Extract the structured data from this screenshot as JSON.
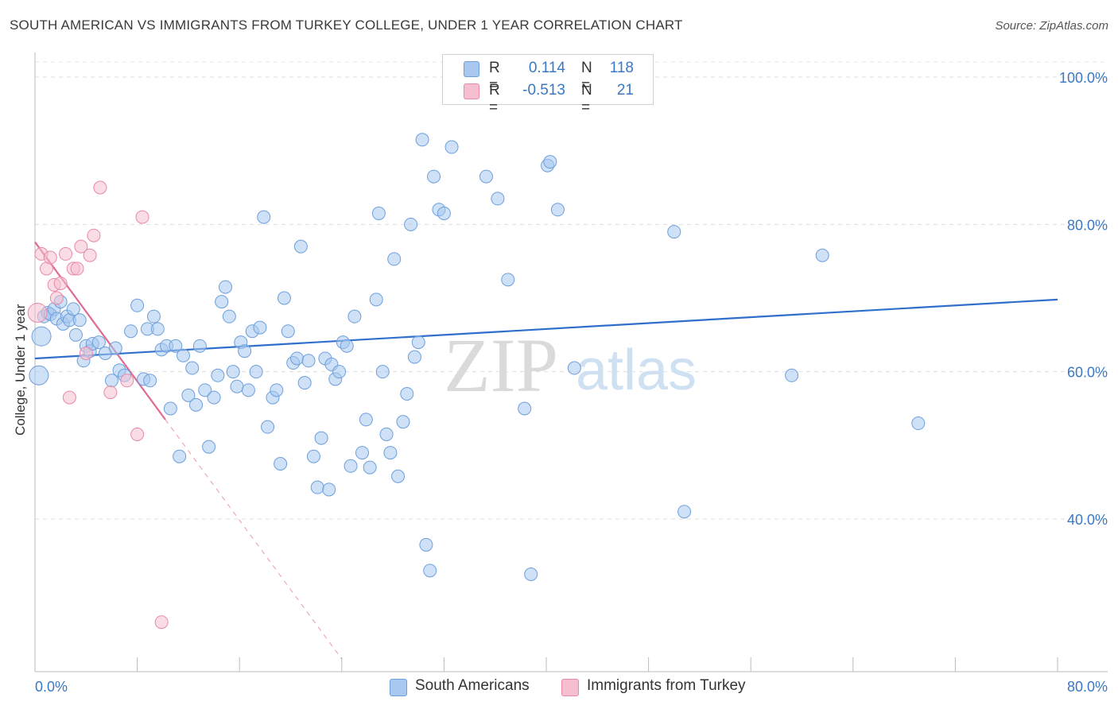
{
  "header": {
    "title": "SOUTH AMERICAN VS IMMIGRANTS FROM TURKEY COLLEGE, UNDER 1 YEAR CORRELATION CHART",
    "source": "Source: ZipAtlas.com"
  },
  "legend": {
    "rows": [
      {
        "r_label": "R =",
        "r_value": "0.114",
        "n_label": "N =",
        "n_value": "118"
      },
      {
        "r_label": "R =",
        "r_value": "-0.513",
        "n_label": "N =",
        "n_value": "21"
      }
    ]
  },
  "bottom_legend": {
    "items": [
      {
        "label": "South Americans"
      },
      {
        "label": "Immigrants from Turkey"
      }
    ]
  },
  "watermark": {
    "zip": "ZIP",
    "atlas": "atlas"
  },
  "colors": {
    "blue_fill": "#a8c8ef",
    "blue_stroke": "#6d9fdc",
    "blue_line": "#2f6fcc",
    "pink_fill": "#f6bfd0",
    "pink_stroke": "#e88aa8",
    "pink_line": "#e06a92",
    "axis_text": "#3b78c4"
  },
  "chart_data": {
    "type": "scatter",
    "title": "SOUTH AMERICAN VS IMMIGRANTS FROM TURKEY COLLEGE, UNDER 1 YEAR CORRELATION CHART",
    "xlabel": "",
    "ylabel": "College, Under 1 year",
    "xlim": [
      0,
      80
    ],
    "ylim": [
      20,
      102
    ],
    "x_tick_labels": [
      "0.0%",
      "80.0%"
    ],
    "y_ticks": [
      40,
      60,
      80,
      100
    ],
    "y_tick_labels": [
      "40.0%",
      "60.0%",
      "80.0%",
      "100.0%"
    ],
    "grid": "horizontal dashed",
    "legend_position": "top-center",
    "series": [
      {
        "name": "South Americans",
        "color": "#a8c8ef",
        "trend": {
          "x": [
            0,
            80
          ],
          "y": [
            61.8,
            69.8
          ]
        },
        "points": [
          [
            0.3,
            59.5
          ],
          [
            0.5,
            64.8
          ],
          [
            0.7,
            67.5
          ],
          [
            1.0,
            68.0
          ],
          [
            1.2,
            67.8
          ],
          [
            1.5,
            68.5
          ],
          [
            1.7,
            67.2
          ],
          [
            2.0,
            69.5
          ],
          [
            2.2,
            66.5
          ],
          [
            2.5,
            67.5
          ],
          [
            2.7,
            67.0
          ],
          [
            3.0,
            68.5
          ],
          [
            3.2,
            65.0
          ],
          [
            3.5,
            67.0
          ],
          [
            3.8,
            61.5
          ],
          [
            4.0,
            63.5
          ],
          [
            4.3,
            62.8
          ],
          [
            4.5,
            63.8
          ],
          [
            5.0,
            64.0
          ],
          [
            5.5,
            62.5
          ],
          [
            6.0,
            58.8
          ],
          [
            6.3,
            63.2
          ],
          [
            6.6,
            60.2
          ],
          [
            7.0,
            59.5
          ],
          [
            7.5,
            65.5
          ],
          [
            8.0,
            69.0
          ],
          [
            8.5,
            59.0
          ],
          [
            8.8,
            65.8
          ],
          [
            9.0,
            58.8
          ],
          [
            9.3,
            67.5
          ],
          [
            9.6,
            65.8
          ],
          [
            9.9,
            63.0
          ],
          [
            10.3,
            63.5
          ],
          [
            10.6,
            55.0
          ],
          [
            11.0,
            63.5
          ],
          [
            11.3,
            48.5
          ],
          [
            11.6,
            62.2
          ],
          [
            12.0,
            56.8
          ],
          [
            12.3,
            60.5
          ],
          [
            12.6,
            55.5
          ],
          [
            12.9,
            63.5
          ],
          [
            13.3,
            57.5
          ],
          [
            13.6,
            49.8
          ],
          [
            14.0,
            56.5
          ],
          [
            14.3,
            59.5
          ],
          [
            14.6,
            69.5
          ],
          [
            14.9,
            71.5
          ],
          [
            15.2,
            67.5
          ],
          [
            15.5,
            60.0
          ],
          [
            15.8,
            58.0
          ],
          [
            16.1,
            64.0
          ],
          [
            16.4,
            62.8
          ],
          [
            16.7,
            57.5
          ],
          [
            17.0,
            65.5
          ],
          [
            17.3,
            60.0
          ],
          [
            17.6,
            66.0
          ],
          [
            17.9,
            81.0
          ],
          [
            18.2,
            52.5
          ],
          [
            18.6,
            56.5
          ],
          [
            18.9,
            57.5
          ],
          [
            19.2,
            47.5
          ],
          [
            19.5,
            70.0
          ],
          [
            19.8,
            65.5
          ],
          [
            20.2,
            61.2
          ],
          [
            20.5,
            61.8
          ],
          [
            20.8,
            77.0
          ],
          [
            21.1,
            58.5
          ],
          [
            21.4,
            61.5
          ],
          [
            21.8,
            48.5
          ],
          [
            22.1,
            44.3
          ],
          [
            22.4,
            51.0
          ],
          [
            22.7,
            61.8
          ],
          [
            23.0,
            44.0
          ],
          [
            23.2,
            61.0
          ],
          [
            23.5,
            59.0
          ],
          [
            23.8,
            60.0
          ],
          [
            24.1,
            64.0
          ],
          [
            24.4,
            63.5
          ],
          [
            24.7,
            47.2
          ],
          [
            25.0,
            67.5
          ],
          [
            25.6,
            49.0
          ],
          [
            25.9,
            53.5
          ],
          [
            26.2,
            47.0
          ],
          [
            26.7,
            69.8
          ],
          [
            26.9,
            81.5
          ],
          [
            27.2,
            60.0
          ],
          [
            27.5,
            51.5
          ],
          [
            27.8,
            49.0
          ],
          [
            28.1,
            75.3
          ],
          [
            28.4,
            45.8
          ],
          [
            28.8,
            53.2
          ],
          [
            29.1,
            57.0
          ],
          [
            29.4,
            80.0
          ],
          [
            29.7,
            62.0
          ],
          [
            30.0,
            64.0
          ],
          [
            30.3,
            91.5
          ],
          [
            30.6,
            36.5
          ],
          [
            30.9,
            33.0
          ],
          [
            31.2,
            86.5
          ],
          [
            31.6,
            82.0
          ],
          [
            32.0,
            81.5
          ],
          [
            32.6,
            90.5
          ],
          [
            35.3,
            86.5
          ],
          [
            36.2,
            83.5
          ],
          [
            37.0,
            72.5
          ],
          [
            38.3,
            55.0
          ],
          [
            38.8,
            32.5
          ],
          [
            40.1,
            88.0
          ],
          [
            40.3,
            88.5
          ],
          [
            40.9,
            82.0
          ],
          [
            42.2,
            60.5
          ],
          [
            50.0,
            79.0
          ],
          [
            50.8,
            41.0
          ],
          [
            59.2,
            59.5
          ],
          [
            61.6,
            75.8
          ],
          [
            69.1,
            53.0
          ]
        ],
        "sizes_note": "large markers at x=0.3 and x=0.5"
      },
      {
        "name": "Immigrants from Turkey",
        "color": "#f6bfd0",
        "trend": {
          "x": [
            0,
            10.2
          ],
          "y": [
            77.6,
            53.5
          ],
          "dashed_extension": {
            "x": [
              10.2,
              24.0
            ],
            "y": [
              53.5,
              21.0
            ]
          }
        },
        "points": [
          [
            0.2,
            68.0
          ],
          [
            0.5,
            76.0
          ],
          [
            0.9,
            74.0
          ],
          [
            1.2,
            75.5
          ],
          [
            1.5,
            71.8
          ],
          [
            1.7,
            70.0
          ],
          [
            2.0,
            72.0
          ],
          [
            2.4,
            76.0
          ],
          [
            2.7,
            56.5
          ],
          [
            3.0,
            74.0
          ],
          [
            3.3,
            74.0
          ],
          [
            3.6,
            77.0
          ],
          [
            4.0,
            62.5
          ],
          [
            4.3,
            75.8
          ],
          [
            4.6,
            78.5
          ],
          [
            5.1,
            85.0
          ],
          [
            5.9,
            57.2
          ],
          [
            7.2,
            58.8
          ],
          [
            8.0,
            51.5
          ],
          [
            8.4,
            81.0
          ],
          [
            9.9,
            26.0
          ]
        ]
      }
    ]
  }
}
